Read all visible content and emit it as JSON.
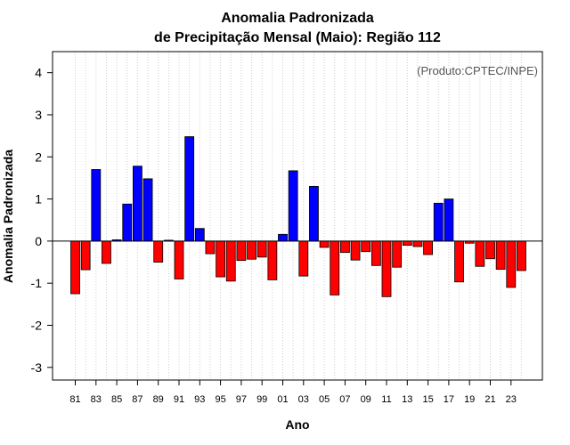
{
  "chart_data": {
    "type": "bar",
    "title_line1": "Anomalia Padronizada",
    "title_line2": "de Precipitação Mensal (Maio): Região 112",
    "xlabel": "Ano",
    "ylabel": "Anomalia Padronizada",
    "credit": "(Produto:CPTEC/INPE)",
    "ylim": [
      -3.3,
      4.5
    ],
    "yticks": [
      -3,
      -2,
      -1,
      0,
      1,
      2,
      3,
      4
    ],
    "grid": "vertical-dotted",
    "colors": {
      "positive": "#0000ff",
      "negative": "#ff0000",
      "border": "#000000",
      "grid": "#cccccc"
    },
    "categories": [
      "81",
      "82",
      "83",
      "84",
      "85",
      "86",
      "87",
      "88",
      "89",
      "90",
      "91",
      "92",
      "93",
      "94",
      "95",
      "96",
      "97",
      "98",
      "99",
      "00",
      "01",
      "02",
      "03",
      "04",
      "05",
      "06",
      "07",
      "08",
      "09",
      "10",
      "11",
      "12",
      "13",
      "14",
      "15",
      "16",
      "17",
      "18",
      "19",
      "20",
      "21",
      "22",
      "23",
      "24"
    ],
    "xtick_labels": [
      "81",
      "83",
      "85",
      "87",
      "89",
      "91",
      "93",
      "95",
      "97",
      "99",
      "01",
      "03",
      "05",
      "07",
      "09",
      "11",
      "13",
      "15",
      "17",
      "19",
      "21",
      "23"
    ],
    "values": [
      -1.25,
      -0.68,
      1.7,
      -0.53,
      0.03,
      0.88,
      1.78,
      1.48,
      -0.5,
      0.02,
      -0.9,
      2.48,
      0.3,
      -0.3,
      -0.85,
      -0.95,
      -0.46,
      -0.43,
      -0.38,
      -0.92,
      0.16,
      1.67,
      -0.83,
      1.3,
      -0.15,
      -1.28,
      -0.27,
      -0.45,
      -0.25,
      -0.58,
      -1.32,
      -0.62,
      -0.1,
      -0.13,
      -0.32,
      0.9,
      1.0,
      -0.97,
      -0.05,
      -0.6,
      -0.42,
      -0.67,
      -1.1,
      -0.7
    ]
  }
}
